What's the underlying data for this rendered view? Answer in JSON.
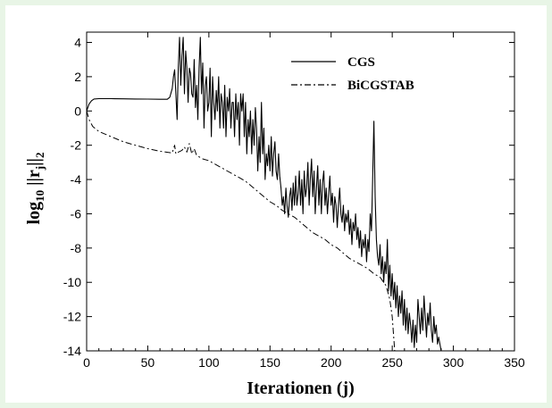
{
  "chart_data": {
    "type": "line",
    "xlabel": "Iterationen (j)",
    "ylabel": "log10 ||rj||2",
    "xlim": [
      0,
      350
    ],
    "ylim": [
      -14,
      4.6
    ],
    "xticks": [
      0,
      50,
      100,
      150,
      200,
      250,
      300,
      350
    ],
    "yticks": [
      4,
      2,
      0,
      -2,
      -4,
      -6,
      -8,
      -10,
      -12,
      -14
    ],
    "grid": false,
    "legend_position": "top-right",
    "series": [
      {
        "name": "CGS",
        "style": "solid",
        "color": "#000000",
        "points": [
          [
            0,
            0.0
          ],
          [
            2,
            0.4
          ],
          [
            4,
            0.6
          ],
          [
            6,
            0.7
          ],
          [
            10,
            0.72
          ],
          [
            20,
            0.72
          ],
          [
            30,
            0.71
          ],
          [
            40,
            0.7
          ],
          [
            50,
            0.69
          ],
          [
            60,
            0.68
          ],
          [
            66,
            0.68
          ],
          [
            68,
            0.8
          ],
          [
            70,
            1.3
          ],
          [
            71,
            2.0
          ],
          [
            72,
            2.4
          ],
          [
            73,
            1.0
          ],
          [
            74,
            -0.5
          ],
          [
            75,
            2.5
          ],
          [
            76,
            4.3
          ],
          [
            77,
            1.5
          ],
          [
            78,
            3.2
          ],
          [
            79,
            4.3
          ],
          [
            80,
            1.0
          ],
          [
            81,
            3.5
          ],
          [
            82,
            2.5
          ],
          [
            83,
            0.5
          ],
          [
            84,
            2.5
          ],
          [
            85,
            2.2
          ],
          [
            86,
            1.0
          ],
          [
            87,
            0.8
          ],
          [
            88,
            3.0
          ],
          [
            89,
            0.2
          ],
          [
            90,
            1.5
          ],
          [
            91,
            -0.5
          ],
          [
            92,
            2.5
          ],
          [
            93,
            4.3
          ],
          [
            94,
            1.0
          ],
          [
            95,
            2.8
          ],
          [
            96,
            -1.0
          ],
          [
            97,
            1.5
          ],
          [
            98,
            2.0
          ],
          [
            99,
            0.0
          ],
          [
            100,
            0.5
          ],
          [
            101,
            2.5
          ],
          [
            102,
            -1.5
          ],
          [
            103,
            2.0
          ],
          [
            104,
            0.5
          ],
          [
            105,
            -0.5
          ],
          [
            106,
            1.2
          ],
          [
            107,
            0.0
          ],
          [
            108,
            2.0
          ],
          [
            109,
            -1.0
          ],
          [
            110,
            1.0
          ],
          [
            111,
            0.5
          ],
          [
            112,
            -1.0
          ],
          [
            113,
            1.5
          ],
          [
            114,
            -1.5
          ],
          [
            115,
            0.8
          ],
          [
            116,
            0.0
          ],
          [
            117,
            1.3
          ],
          [
            118,
            -1.0
          ],
          [
            119,
            0.5
          ],
          [
            120,
            0.5
          ],
          [
            121,
            -1.5
          ],
          [
            122,
            1.0
          ],
          [
            123,
            -0.5
          ],
          [
            124,
            0.5
          ],
          [
            125,
            -2.0
          ],
          [
            126,
            1.0
          ],
          [
            127,
            0.0
          ],
          [
            128,
            1.0
          ],
          [
            129,
            -1.5
          ],
          [
            130,
            0.5
          ],
          [
            131,
            -2.5
          ],
          [
            132,
            -0.5
          ],
          [
            133,
            -1.5
          ],
          [
            134,
            0.0
          ],
          [
            135,
            -2.5
          ],
          [
            136,
            -0.5
          ],
          [
            137,
            -2.0
          ],
          [
            138,
            0.2
          ],
          [
            139,
            -1.0
          ],
          [
            140,
            -3.5
          ],
          [
            141,
            -1.5
          ],
          [
            142,
            -3.0
          ],
          [
            143,
            0.5
          ],
          [
            144,
            -2.5
          ],
          [
            145,
            -1.0
          ],
          [
            146,
            -4.0
          ],
          [
            147,
            -2.5
          ],
          [
            148,
            -3.2
          ],
          [
            149,
            -2.0
          ],
          [
            150,
            -3.5
          ],
          [
            151,
            -1.5
          ],
          [
            152,
            -3.8
          ],
          [
            153,
            -2.5
          ],
          [
            154,
            -1.8
          ],
          [
            155,
            -3.5
          ],
          [
            156,
            -4.0
          ],
          [
            157,
            -2.5
          ],
          [
            158,
            -3.8
          ],
          [
            159,
            -4.5
          ],
          [
            160,
            -5.5
          ],
          [
            161,
            -5.0
          ],
          [
            162,
            -6.0
          ],
          [
            163,
            -4.5
          ],
          [
            164,
            -5.5
          ],
          [
            165,
            -6.2
          ],
          [
            166,
            -5.0
          ],
          [
            167,
            -4.5
          ],
          [
            168,
            -5.8
          ],
          [
            169,
            -4.2
          ],
          [
            170,
            -5.5
          ],
          [
            171,
            -3.8
          ],
          [
            172,
            -5.5
          ],
          [
            173,
            -4.8
          ],
          [
            174,
            -3.5
          ],
          [
            175,
            -5.5
          ],
          [
            176,
            -4.0
          ],
          [
            177,
            -6.0
          ],
          [
            178,
            -3.5
          ],
          [
            179,
            -5.0
          ],
          [
            180,
            -4.5
          ],
          [
            181,
            -3.0
          ],
          [
            182,
            -5.5
          ],
          [
            183,
            -4.0
          ],
          [
            184,
            -2.8
          ],
          [
            185,
            -5.0
          ],
          [
            186,
            -3.5
          ],
          [
            187,
            -6.0
          ],
          [
            188,
            -4.5
          ],
          [
            189,
            -3.2
          ],
          [
            190,
            -5.5
          ],
          [
            191,
            -4.0
          ],
          [
            192,
            -6.0
          ],
          [
            193,
            -4.2
          ],
          [
            194,
            -3.5
          ],
          [
            195,
            -5.5
          ],
          [
            196,
            -4.5
          ],
          [
            197,
            -6.0
          ],
          [
            198,
            -4.8
          ],
          [
            199,
            -3.8
          ],
          [
            200,
            -5.5
          ],
          [
            201,
            -4.8
          ],
          [
            202,
            -6.5
          ],
          [
            203,
            -5.0
          ],
          [
            204,
            -5.5
          ],
          [
            205,
            -6.8
          ],
          [
            206,
            -5.5
          ],
          [
            207,
            -4.5
          ],
          [
            208,
            -6.0
          ],
          [
            209,
            -6.5
          ],
          [
            210,
            -5.5
          ],
          [
            211,
            -7.0
          ],
          [
            212,
            -6.0
          ],
          [
            213,
            -6.5
          ],
          [
            214,
            -5.8
          ],
          [
            215,
            -7.2
          ],
          [
            216,
            -6.3
          ],
          [
            217,
            -7.8
          ],
          [
            218,
            -6.5
          ],
          [
            219,
            -7.0
          ],
          [
            220,
            -6.0
          ],
          [
            221,
            -7.5
          ],
          [
            222,
            -6.8
          ],
          [
            223,
            -8.0
          ],
          [
            224,
            -7.0
          ],
          [
            225,
            -8.5
          ],
          [
            226,
            -7.5
          ],
          [
            227,
            -8.0
          ],
          [
            228,
            -7.2
          ],
          [
            229,
            -8.8
          ],
          [
            230,
            -7.5
          ],
          [
            231,
            -8.2
          ],
          [
            232,
            -6.0
          ],
          [
            233,
            -7.0
          ],
          [
            234,
            -4.0
          ],
          [
            235,
            -0.6
          ],
          [
            236,
            -5.0
          ],
          [
            237,
            -7.5
          ],
          [
            238,
            -8.5
          ],
          [
            239,
            -9.0
          ],
          [
            240,
            -7.8
          ],
          [
            241,
            -9.5
          ],
          [
            242,
            -8.5
          ],
          [
            243,
            -10.0
          ],
          [
            244,
            -8.8
          ],
          [
            245,
            -9.5
          ],
          [
            246,
            -7.5
          ],
          [
            247,
            -10.5
          ],
          [
            248,
            -9.0
          ],
          [
            249,
            -10.8
          ],
          [
            250,
            -9.5
          ],
          [
            251,
            -11.0
          ],
          [
            252,
            -10.0
          ],
          [
            253,
            -11.5
          ],
          [
            254,
            -10.2
          ],
          [
            255,
            -12.0
          ],
          [
            256,
            -10.8
          ],
          [
            257,
            -11.8
          ],
          [
            258,
            -10.5
          ],
          [
            259,
            -12.5
          ],
          [
            260,
            -11.0
          ],
          [
            261,
            -12.8
          ],
          [
            262,
            -11.5
          ],
          [
            263,
            -13.0
          ],
          [
            264,
            -11.8
          ],
          [
            265,
            -12.5
          ],
          [
            266,
            -13.5
          ],
          [
            267,
            -12.2
          ],
          [
            268,
            -13.8
          ],
          [
            269,
            -12.5
          ],
          [
            270,
            -13.5
          ],
          [
            271,
            -11.0
          ],
          [
            272,
            -12.0
          ],
          [
            273,
            -13.0
          ],
          [
            274,
            -11.5
          ],
          [
            275,
            -12.8
          ],
          [
            276,
            -10.8
          ],
          [
            277,
            -12.0
          ],
          [
            278,
            -13.2
          ],
          [
            279,
            -11.8
          ],
          [
            280,
            -12.5
          ],
          [
            281,
            -11.2
          ],
          [
            282,
            -12.8
          ],
          [
            283,
            -13.5
          ],
          [
            284,
            -12.0
          ],
          [
            285,
            -13.0
          ],
          [
            286,
            -12.5
          ],
          [
            287,
            -13.6
          ],
          [
            288,
            -13.2
          ],
          [
            290,
            -14.0
          ]
        ]
      },
      {
        "name": "BiCGSTAB",
        "style": "dashdot",
        "color": "#000000",
        "points": [
          [
            0,
            0.0
          ],
          [
            2,
            -0.5
          ],
          [
            5,
            -0.9
          ],
          [
            10,
            -1.2
          ],
          [
            20,
            -1.5
          ],
          [
            30,
            -1.8
          ],
          [
            40,
            -2.0
          ],
          [
            50,
            -2.2
          ],
          [
            60,
            -2.35
          ],
          [
            70,
            -2.45
          ],
          [
            72,
            -2.0
          ],
          [
            73,
            -2.5
          ],
          [
            75,
            -2.4
          ],
          [
            78,
            -2.3
          ],
          [
            80,
            -2.1
          ],
          [
            82,
            -2.4
          ],
          [
            84,
            -1.9
          ],
          [
            86,
            -2.5
          ],
          [
            88,
            -2.2
          ],
          [
            90,
            -2.6
          ],
          [
            95,
            -2.8
          ],
          [
            100,
            -2.9
          ],
          [
            105,
            -3.1
          ],
          [
            110,
            -3.3
          ],
          [
            115,
            -3.5
          ],
          [
            120,
            -3.7
          ],
          [
            125,
            -3.9
          ],
          [
            130,
            -4.1
          ],
          [
            135,
            -4.4
          ],
          [
            140,
            -4.7
          ],
          [
            145,
            -5.0
          ],
          [
            150,
            -5.3
          ],
          [
            155,
            -5.5
          ],
          [
            160,
            -5.8
          ],
          [
            165,
            -6.0
          ],
          [
            170,
            -6.2
          ],
          [
            175,
            -6.5
          ],
          [
            180,
            -6.8
          ],
          [
            185,
            -7.1
          ],
          [
            190,
            -7.3
          ],
          [
            195,
            -7.5
          ],
          [
            200,
            -7.8
          ],
          [
            205,
            -8.0
          ],
          [
            210,
            -8.3
          ],
          [
            215,
            -8.6
          ],
          [
            220,
            -8.8
          ],
          [
            225,
            -9.0
          ],
          [
            230,
            -9.2
          ],
          [
            235,
            -9.5
          ],
          [
            240,
            -9.7
          ],
          [
            245,
            -10.2
          ],
          [
            248,
            -11.0
          ],
          [
            250,
            -12.0
          ],
          [
            251,
            -13.0
          ],
          [
            252,
            -14.0
          ]
        ]
      }
    ]
  }
}
